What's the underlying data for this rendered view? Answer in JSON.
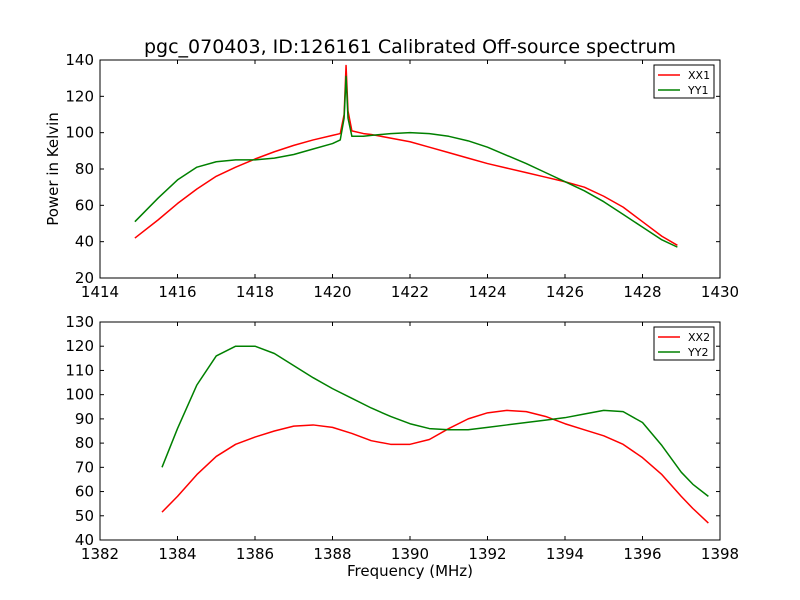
{
  "title": "pgc_070403, ID:126161 Calibrated Off-source spectrum",
  "chart_data": [
    {
      "type": "line",
      "title": "pgc_070403, ID:126161 Calibrated Off-source spectrum",
      "xlabel": "",
      "ylabel": "Power in Kelvin",
      "xlim": [
        1414,
        1430
      ],
      "ylim": [
        20,
        140
      ],
      "xticks": [
        1414,
        1416,
        1418,
        1420,
        1422,
        1424,
        1426,
        1428,
        1430
      ],
      "yticks": [
        20,
        40,
        60,
        80,
        100,
        120,
        140
      ],
      "grid": false,
      "legend": "top-right",
      "series": [
        {
          "name": "XX1",
          "color": "#ff0000",
          "x": [
            1414.9,
            1415.5,
            1416.0,
            1416.5,
            1417.0,
            1417.5,
            1418.0,
            1418.5,
            1419.0,
            1419.5,
            1420.0,
            1420.2,
            1420.3,
            1420.35,
            1420.4,
            1420.5,
            1420.8,
            1421.0,
            1421.5,
            1422.0,
            1422.5,
            1423.0,
            1423.5,
            1424.0,
            1424.5,
            1425.0,
            1425.5,
            1426.0,
            1426.5,
            1427.0,
            1427.5,
            1428.0,
            1428.5,
            1428.9
          ],
          "y": [
            42,
            52,
            61,
            69,
            76,
            81,
            85.5,
            89.5,
            93,
            96,
            98.5,
            99.5,
            110,
            137,
            112,
            101,
            99.5,
            99,
            97,
            95,
            92,
            89,
            86,
            83,
            80.5,
            78,
            75.5,
            73,
            70,
            65,
            59,
            51,
            43,
            38
          ]
        },
        {
          "name": "YY1",
          "color": "#008000",
          "x": [
            1414.9,
            1415.5,
            1416.0,
            1416.5,
            1417.0,
            1417.5,
            1418.0,
            1418.5,
            1419.0,
            1419.5,
            1420.0,
            1420.2,
            1420.3,
            1420.35,
            1420.4,
            1420.5,
            1420.8,
            1421.0,
            1421.5,
            1422.0,
            1422.5,
            1423.0,
            1423.5,
            1424.0,
            1424.5,
            1425.0,
            1425.5,
            1426.0,
            1426.5,
            1427.0,
            1427.5,
            1428.0,
            1428.5,
            1428.9
          ],
          "y": [
            51,
            64,
            74,
            81,
            84,
            85,
            85,
            86,
            88,
            91,
            94,
            96,
            108,
            131,
            108,
            98,
            98,
            98.5,
            99.5,
            100,
            99.5,
            98,
            95.5,
            92,
            87.5,
            83,
            78,
            73,
            68,
            62,
            55,
            48,
            41,
            37
          ]
        }
      ]
    },
    {
      "type": "line",
      "title": "",
      "xlabel": "Frequency (MHz)",
      "ylabel": "",
      "xlim": [
        1382,
        1398
      ],
      "ylim": [
        40,
        130
      ],
      "xticks": [
        1382,
        1384,
        1386,
        1388,
        1390,
        1392,
        1394,
        1396,
        1398
      ],
      "yticks": [
        40,
        50,
        60,
        70,
        80,
        90,
        100,
        110,
        120,
        130
      ],
      "grid": false,
      "legend": "top-right",
      "series": [
        {
          "name": "XX2",
          "color": "#ff0000",
          "x": [
            1383.6,
            1384.0,
            1384.5,
            1385.0,
            1385.5,
            1386.0,
            1386.5,
            1387.0,
            1387.5,
            1388.0,
            1388.5,
            1389.0,
            1389.5,
            1390.0,
            1390.5,
            1391.0,
            1391.5,
            1392.0,
            1392.5,
            1393.0,
            1393.5,
            1394.0,
            1394.5,
            1395.0,
            1395.5,
            1396.0,
            1396.5,
            1397.0,
            1397.3,
            1397.7
          ],
          "y": [
            51.5,
            58,
            67,
            74.5,
            79.5,
            82.5,
            85,
            87,
            87.5,
            86.5,
            84,
            81,
            79.5,
            79.5,
            81.5,
            86,
            90,
            92.5,
            93.5,
            93,
            91,
            88,
            85.5,
            83,
            79.5,
            74,
            67,
            58,
            53,
            47
          ]
        },
        {
          "name": "YY2",
          "color": "#008000",
          "x": [
            1383.6,
            1384.0,
            1384.5,
            1385.0,
            1385.5,
            1386.0,
            1386.5,
            1387.0,
            1387.5,
            1388.0,
            1388.5,
            1389.0,
            1389.5,
            1390.0,
            1390.5,
            1391.0,
            1391.5,
            1392.0,
            1392.5,
            1393.0,
            1393.5,
            1394.0,
            1394.5,
            1395.0,
            1395.5,
            1396.0,
            1396.5,
            1397.0,
            1397.3,
            1397.7
          ],
          "y": [
            70,
            86,
            104,
            116,
            120,
            120,
            117,
            112,
            107,
            102.5,
            98.5,
            94.5,
            91,
            88,
            86,
            85.5,
            85.5,
            86.5,
            87.5,
            88.5,
            89.5,
            90.5,
            92,
            93.5,
            93,
            88.5,
            79,
            68,
            63,
            58
          ]
        }
      ]
    }
  ]
}
